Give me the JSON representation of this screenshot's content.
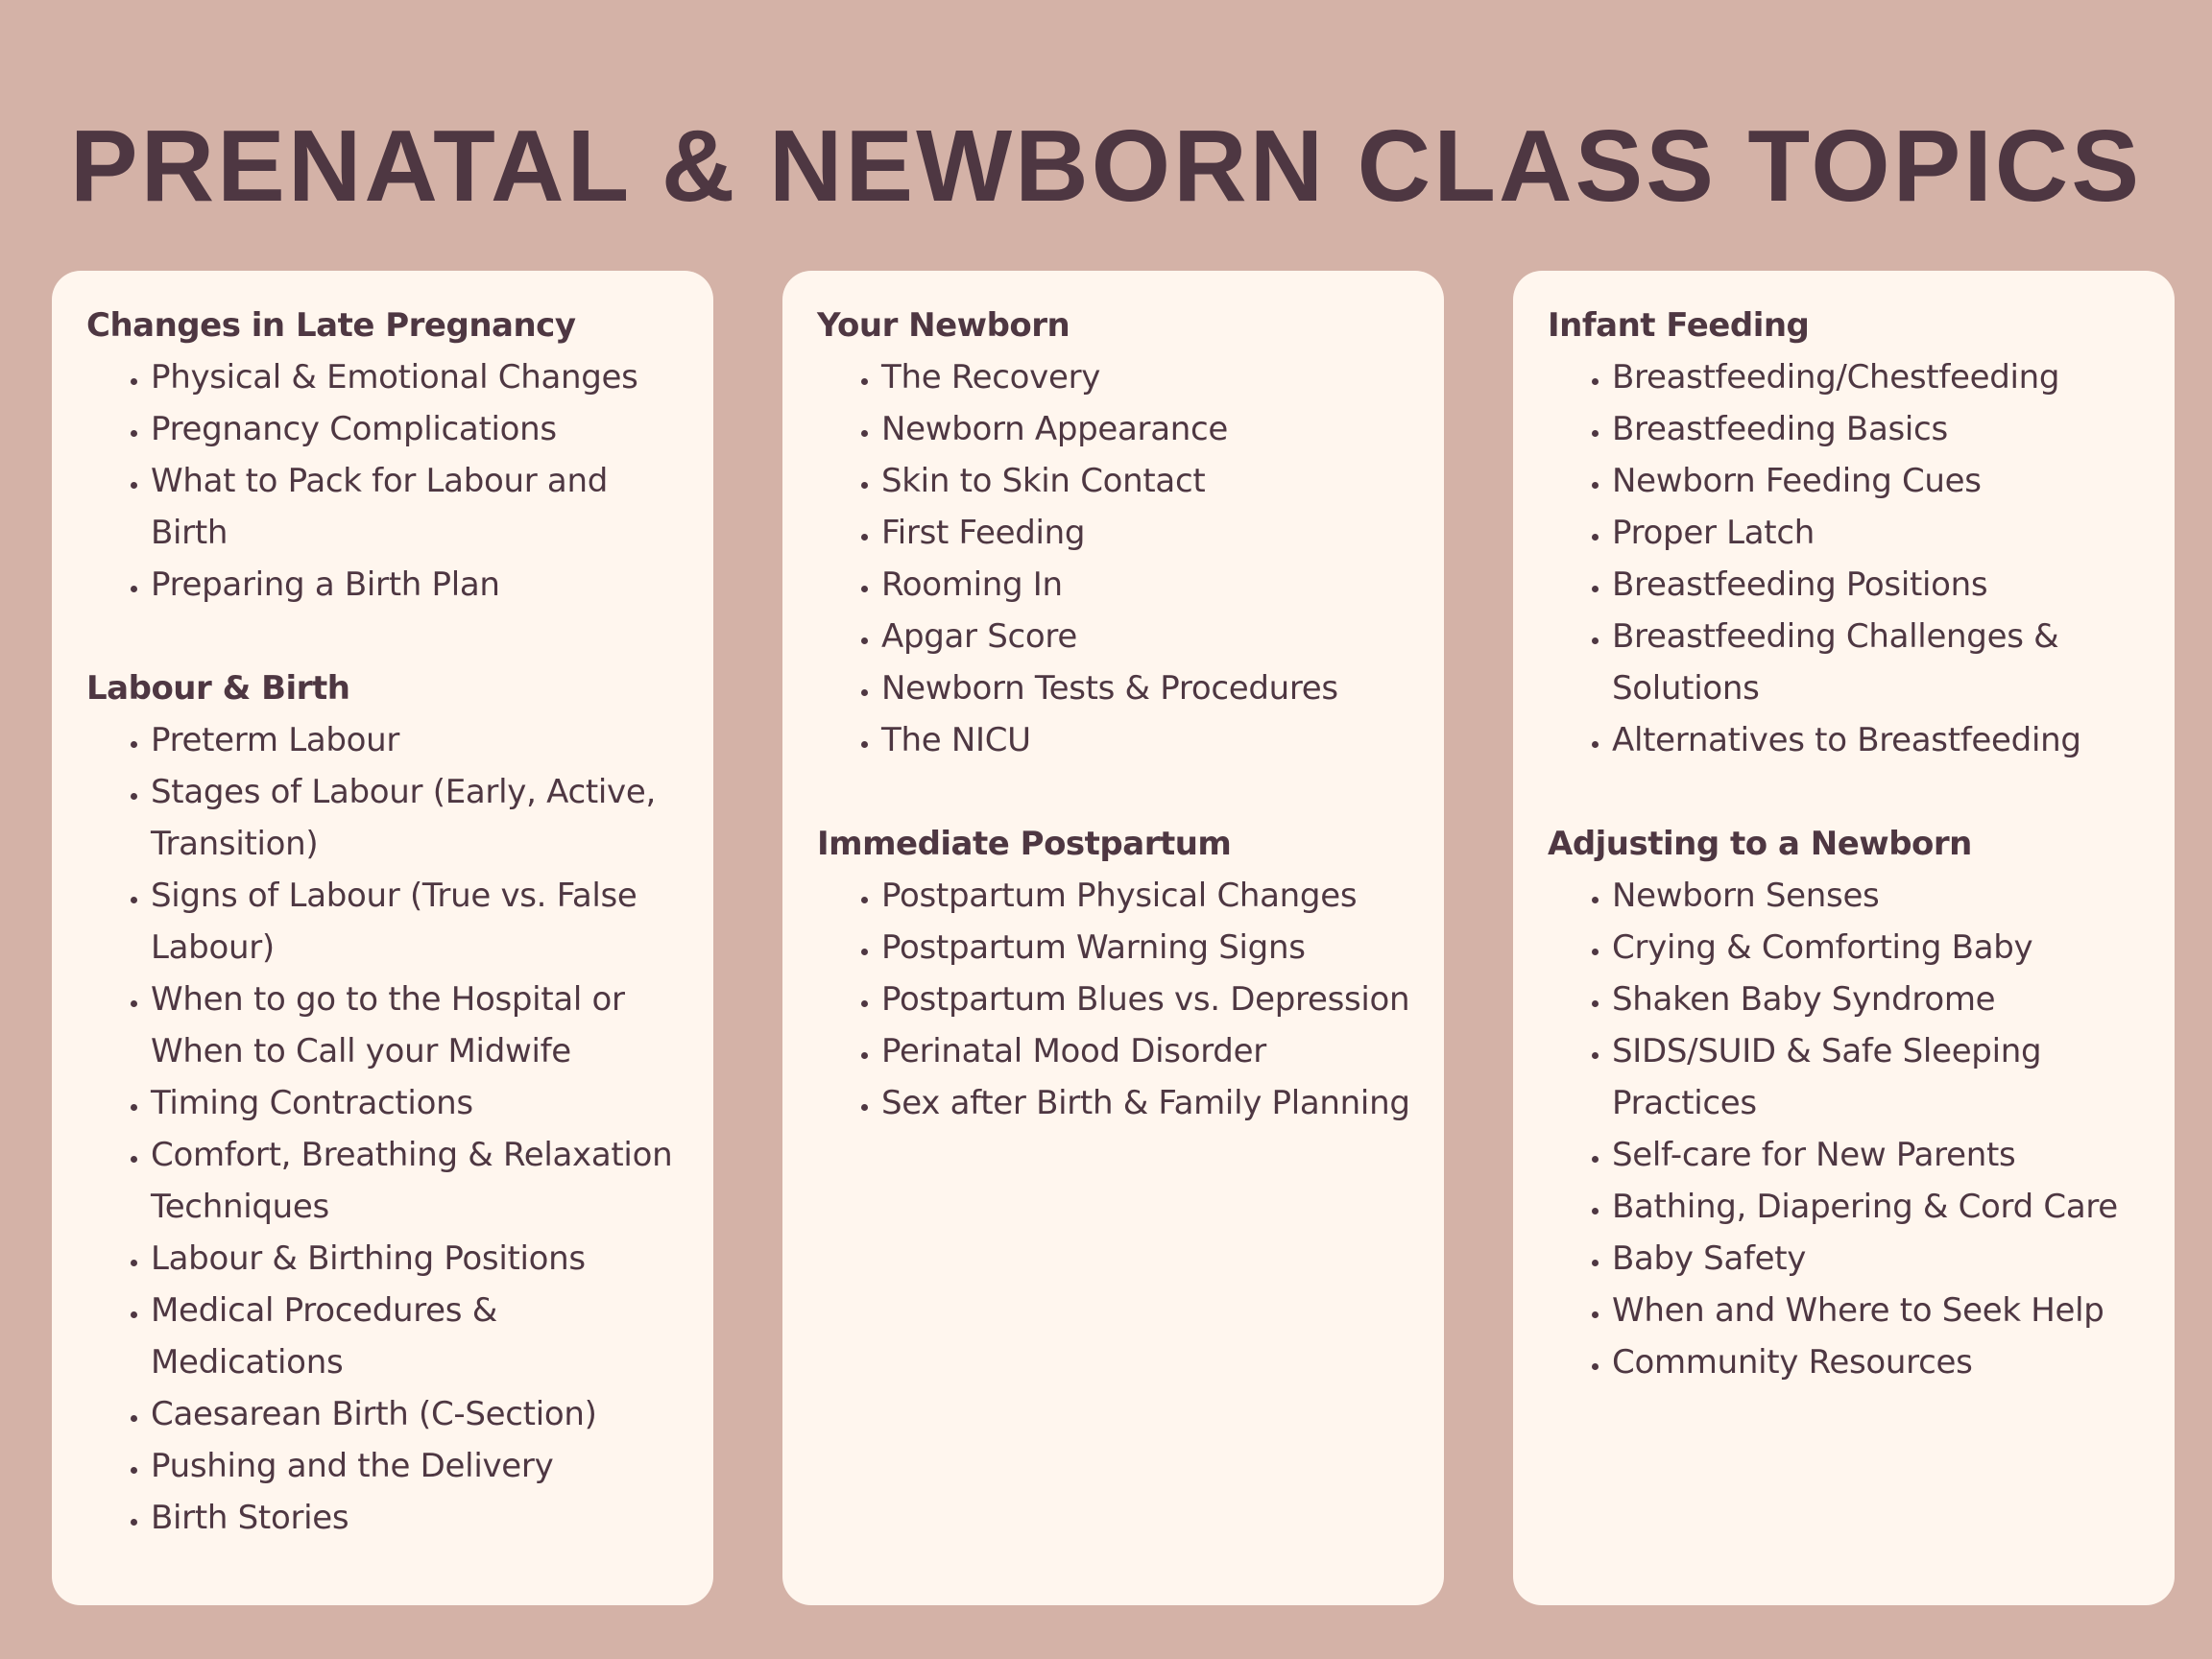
{
  "title": "PRENATAL & NEWBORN CLASS TOPICS",
  "colors": {
    "background": "#d4b2a7",
    "card": "#fff6ee",
    "text": "#4e3742"
  },
  "columns": [
    {
      "sections": [
        {
          "heading": "Changes in Late Pregnancy",
          "items": [
            "Physical & Emotional Changes",
            "Pregnancy Complications",
            "What to Pack for Labour and Birth",
            "Preparing a Birth Plan"
          ]
        },
        {
          "heading": "Labour & Birth",
          "items": [
            "Preterm Labour",
            "Stages of Labour (Early, Active, Transition)",
            "Signs of Labour (True vs. False Labour)",
            "When to go to the Hospital or When to Call your Midwife",
            "Timing Contractions",
            "Comfort, Breathing & Relaxation Techniques",
            "Labour & Birthing Positions",
            "Medical Procedures & Medications",
            "Caesarean Birth (C-Section)",
            "Pushing and the Delivery",
            "Birth Stories"
          ]
        }
      ]
    },
    {
      "sections": [
        {
          "heading": "Your Newborn",
          "items": [
            "The Recovery",
            "Newborn Appearance",
            "Skin to Skin Contact",
            "First Feeding",
            "Rooming In",
            "Apgar Score",
            "Newborn Tests & Procedures",
            "The NICU"
          ]
        },
        {
          "heading": "Immediate Postpartum",
          "items": [
            "Postpartum Physical Changes",
            "Postpartum Warning Signs",
            "Postpartum Blues vs. Depression",
            "Perinatal Mood Disorder",
            "Sex after Birth & Family Planning"
          ]
        }
      ]
    },
    {
      "sections": [
        {
          "heading": "Infant Feeding",
          "items": [
            "Breastfeeding/Chestfeeding",
            "Breastfeeding Basics",
            "Newborn Feeding Cues",
            "Proper Latch",
            "Breastfeeding Positions",
            "Breastfeeding Challenges & Solutions",
            "Alternatives to Breastfeeding"
          ]
        },
        {
          "heading": "Adjusting to a Newborn",
          "items": [
            "Newborn Senses",
            "Crying & Comforting Baby",
            "Shaken Baby Syndrome",
            "SIDS/SUID & Safe Sleeping Practices",
            "Self-care for New Parents",
            "Bathing, Diapering & Cord Care",
            "Baby Safety",
            "When and Where to Seek Help",
            "Community Resources"
          ]
        }
      ]
    }
  ]
}
